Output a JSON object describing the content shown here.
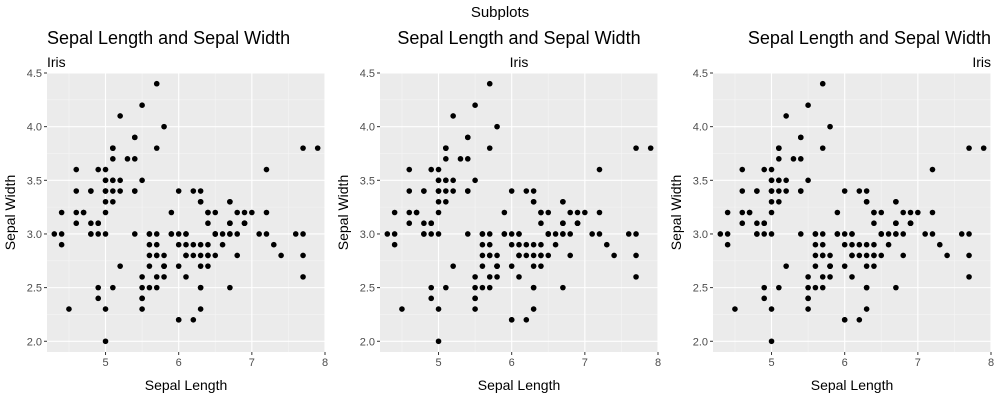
{
  "suptitle": "Subplots",
  "chart_data": [
    {
      "type": "scatter",
      "title": "Sepal Length and Sepal Width",
      "subtitle": "Iris",
      "title_align": "left",
      "xlabel": "Sepal Length",
      "ylabel": "Sepal Width",
      "xlim": [
        4.2,
        8.0
      ],
      "ylim": [
        1.9,
        4.5
      ],
      "xticks": [
        5,
        6,
        7,
        8
      ],
      "yticks": [
        2.0,
        2.5,
        3.0,
        3.5,
        4.0,
        4.5
      ],
      "ytick_labels": [
        "2.0",
        "2.5",
        "3.0",
        "3.5",
        "4.0",
        "4.5"
      ],
      "grid": true,
      "point_color": "#000000",
      "panel_color": "#EBEBEB",
      "series": [
        {
          "x": [
            5.1,
            4.9,
            4.7,
            4.6,
            5.0,
            5.4,
            4.6,
            5.0,
            4.4,
            4.9,
            5.4,
            4.8,
            4.8,
            4.3,
            5.8,
            5.7,
            5.4,
            5.1,
            5.7,
            5.1,
            5.4,
            5.1,
            4.6,
            5.1,
            4.8,
            5.0,
            5.0,
            5.2,
            5.2,
            4.7,
            4.8,
            5.4,
            5.2,
            5.5,
            4.9,
            5.0,
            5.5,
            4.9,
            4.4,
            5.1,
            5.0,
            4.5,
            4.4,
            5.0,
            5.1,
            4.8,
            5.1,
            4.6,
            5.3,
            5.0,
            7.0,
            6.4,
            6.9,
            5.5,
            6.5,
            5.7,
            6.3,
            4.9,
            6.6,
            5.2,
            5.0,
            5.9,
            6.0,
            6.1,
            5.6,
            6.7,
            5.6,
            5.8,
            6.2,
            5.6,
            5.9,
            6.1,
            6.3,
            6.1,
            6.4,
            6.6,
            6.8,
            6.7,
            6.0,
            5.7,
            5.5,
            5.5,
            5.8,
            6.0,
            5.4,
            6.0,
            6.7,
            6.3,
            5.6,
            5.5,
            5.5,
            6.1,
            5.8,
            5.0,
            5.6,
            5.7,
            5.7,
            6.2,
            5.1,
            5.7,
            6.3,
            5.8,
            7.1,
            6.3,
            6.5,
            7.6,
            4.9,
            7.3,
            6.7,
            7.2,
            6.5,
            6.4,
            6.8,
            5.7,
            5.8,
            6.4,
            6.5,
            7.7,
            7.7,
            6.0,
            6.9,
            5.6,
            7.7,
            6.3,
            6.7,
            7.2,
            6.2,
            6.1,
            6.4,
            7.2,
            7.4,
            7.9,
            6.4,
            6.3,
            6.1,
            7.7,
            6.3,
            6.4,
            6.0,
            6.9,
            6.7,
            6.9,
            5.8,
            6.8,
            6.7,
            6.7,
            6.3,
            6.5,
            6.2,
            5.9
          ],
          "y": [
            3.5,
            3.0,
            3.2,
            3.1,
            3.6,
            3.9,
            3.4,
            3.4,
            2.9,
            3.1,
            3.7,
            3.4,
            3.0,
            3.0,
            4.0,
            4.4,
            3.9,
            3.5,
            3.8,
            3.8,
            3.4,
            3.7,
            3.6,
            3.3,
            3.4,
            3.0,
            3.4,
            3.5,
            3.4,
            3.2,
            3.1,
            3.4,
            4.1,
            4.2,
            3.1,
            3.2,
            3.5,
            3.6,
            3.0,
            3.4,
            3.5,
            2.3,
            3.2,
            3.5,
            3.8,
            3.0,
            3.8,
            3.2,
            3.7,
            3.3,
            3.2,
            3.2,
            3.1,
            2.3,
            2.8,
            2.8,
            3.3,
            2.4,
            2.9,
            2.7,
            2.0,
            3.0,
            2.2,
            2.9,
            2.9,
            3.1,
            3.0,
            2.7,
            2.2,
            2.5,
            3.2,
            2.8,
            2.5,
            2.8,
            2.9,
            3.0,
            2.8,
            3.0,
            2.9,
            2.6,
            2.4,
            2.4,
            2.7,
            2.7,
            3.0,
            3.4,
            3.1,
            2.3,
            3.0,
            2.5,
            2.6,
            3.0,
            2.6,
            2.3,
            2.7,
            3.0,
            2.9,
            2.9,
            2.5,
            2.8,
            3.3,
            2.7,
            3.0,
            2.9,
            3.0,
            3.0,
            2.5,
            2.9,
            2.5,
            3.6,
            3.2,
            2.7,
            3.0,
            2.5,
            2.8,
            3.2,
            3.0,
            3.8,
            2.6,
            2.2,
            3.2,
            2.8,
            2.8,
            2.7,
            3.3,
            3.2,
            2.8,
            3.0,
            2.8,
            3.0,
            2.8,
            3.8,
            2.8,
            2.8,
            2.6,
            3.0,
            3.4,
            3.1,
            3.0,
            3.1,
            3.1,
            3.1,
            2.7,
            3.2,
            3.3,
            3.0,
            2.5,
            3.0,
            3.4,
            3.0
          ]
        }
      ]
    },
    {
      "type": "scatter",
      "title": "Sepal Length and Sepal Width",
      "subtitle": "Iris",
      "title_align": "center",
      "xlabel": "Sepal Length",
      "ylabel": "Sepal Width",
      "xlim": [
        4.2,
        8.0
      ],
      "ylim": [
        1.9,
        4.5
      ],
      "xticks": [
        5,
        6,
        7,
        8
      ],
      "yticks": [
        2.0,
        2.5,
        3.0,
        3.5,
        4.0,
        4.5
      ],
      "ytick_labels": [
        "2.0",
        "2.5",
        "3.0",
        "3.5",
        "4.0",
        "4.5"
      ],
      "grid": true,
      "point_color": "#000000",
      "panel_color": "#EBEBEB",
      "series": [
        {
          "x": [
            5.1,
            4.9,
            4.7,
            4.6,
            5.0,
            5.4,
            4.6,
            5.0,
            4.4,
            4.9,
            5.4,
            4.8,
            4.8,
            4.3,
            5.8,
            5.7,
            5.4,
            5.1,
            5.7,
            5.1,
            5.4,
            5.1,
            4.6,
            5.1,
            4.8,
            5.0,
            5.0,
            5.2,
            5.2,
            4.7,
            4.8,
            5.4,
            5.2,
            5.5,
            4.9,
            5.0,
            5.5,
            4.9,
            4.4,
            5.1,
            5.0,
            4.5,
            4.4,
            5.0,
            5.1,
            4.8,
            5.1,
            4.6,
            5.3,
            5.0,
            7.0,
            6.4,
            6.9,
            5.5,
            6.5,
            5.7,
            6.3,
            4.9,
            6.6,
            5.2,
            5.0,
            5.9,
            6.0,
            6.1,
            5.6,
            6.7,
            5.6,
            5.8,
            6.2,
            5.6,
            5.9,
            6.1,
            6.3,
            6.1,
            6.4,
            6.6,
            6.8,
            6.7,
            6.0,
            5.7,
            5.5,
            5.5,
            5.8,
            6.0,
            5.4,
            6.0,
            6.7,
            6.3,
            5.6,
            5.5,
            5.5,
            6.1,
            5.8,
            5.0,
            5.6,
            5.7,
            5.7,
            6.2,
            5.1,
            5.7,
            6.3,
            5.8,
            7.1,
            6.3,
            6.5,
            7.6,
            4.9,
            7.3,
            6.7,
            7.2,
            6.5,
            6.4,
            6.8,
            5.7,
            5.8,
            6.4,
            6.5,
            7.7,
            7.7,
            6.0,
            6.9,
            5.6,
            7.7,
            6.3,
            6.7,
            7.2,
            6.2,
            6.1,
            6.4,
            7.2,
            7.4,
            7.9,
            6.4,
            6.3,
            6.1,
            7.7,
            6.3,
            6.4,
            6.0,
            6.9,
            6.7,
            6.9,
            5.8,
            6.8,
            6.7,
            6.7,
            6.3,
            6.5,
            6.2,
            5.9
          ],
          "y": [
            3.5,
            3.0,
            3.2,
            3.1,
            3.6,
            3.9,
            3.4,
            3.4,
            2.9,
            3.1,
            3.7,
            3.4,
            3.0,
            3.0,
            4.0,
            4.4,
            3.9,
            3.5,
            3.8,
            3.8,
            3.4,
            3.7,
            3.6,
            3.3,
            3.4,
            3.0,
            3.4,
            3.5,
            3.4,
            3.2,
            3.1,
            3.4,
            4.1,
            4.2,
            3.1,
            3.2,
            3.5,
            3.6,
            3.0,
            3.4,
            3.5,
            2.3,
            3.2,
            3.5,
            3.8,
            3.0,
            3.8,
            3.2,
            3.7,
            3.3,
            3.2,
            3.2,
            3.1,
            2.3,
            2.8,
            2.8,
            3.3,
            2.4,
            2.9,
            2.7,
            2.0,
            3.0,
            2.2,
            2.9,
            2.9,
            3.1,
            3.0,
            2.7,
            2.2,
            2.5,
            3.2,
            2.8,
            2.5,
            2.8,
            2.9,
            3.0,
            2.8,
            3.0,
            2.9,
            2.6,
            2.4,
            2.4,
            2.7,
            2.7,
            3.0,
            3.4,
            3.1,
            2.3,
            3.0,
            2.5,
            2.6,
            3.0,
            2.6,
            2.3,
            2.7,
            3.0,
            2.9,
            2.9,
            2.5,
            2.8,
            3.3,
            2.7,
            3.0,
            2.9,
            3.0,
            3.0,
            2.5,
            2.9,
            2.5,
            3.6,
            3.2,
            2.7,
            3.0,
            2.5,
            2.8,
            3.2,
            3.0,
            3.8,
            2.6,
            2.2,
            3.2,
            2.8,
            2.8,
            2.7,
            3.3,
            3.2,
            2.8,
            3.0,
            2.8,
            3.0,
            2.8,
            3.8,
            2.8,
            2.8,
            2.6,
            3.0,
            3.4,
            3.1,
            3.0,
            3.1,
            3.1,
            3.1,
            2.7,
            3.2,
            3.3,
            3.0,
            2.5,
            3.0,
            3.4,
            3.0
          ]
        }
      ]
    },
    {
      "type": "scatter",
      "title": "Sepal Length and Sepal Width",
      "subtitle": "Iris",
      "title_align": "right",
      "xlabel": "Sepal Length",
      "ylabel": "Sepal Width",
      "xlim": [
        4.2,
        8.0
      ],
      "ylim": [
        1.9,
        4.5
      ],
      "xticks": [
        5,
        6,
        7,
        8
      ],
      "yticks": [
        2.0,
        2.5,
        3.0,
        3.5,
        4.0,
        4.5
      ],
      "ytick_labels": [
        "2.0",
        "2.5",
        "3.0",
        "3.5",
        "4.0",
        "4.5"
      ],
      "grid": true,
      "point_color": "#000000",
      "panel_color": "#EBEBEB",
      "series": [
        {
          "x": [
            5.1,
            4.9,
            4.7,
            4.6,
            5.0,
            5.4,
            4.6,
            5.0,
            4.4,
            4.9,
            5.4,
            4.8,
            4.8,
            4.3,
            5.8,
            5.7,
            5.4,
            5.1,
            5.7,
            5.1,
            5.4,
            5.1,
            4.6,
            5.1,
            4.8,
            5.0,
            5.0,
            5.2,
            5.2,
            4.7,
            4.8,
            5.4,
            5.2,
            5.5,
            4.9,
            5.0,
            5.5,
            4.9,
            4.4,
            5.1,
            5.0,
            4.5,
            4.4,
            5.0,
            5.1,
            4.8,
            5.1,
            4.6,
            5.3,
            5.0,
            7.0,
            6.4,
            6.9,
            5.5,
            6.5,
            5.7,
            6.3,
            4.9,
            6.6,
            5.2,
            5.0,
            5.9,
            6.0,
            6.1,
            5.6,
            6.7,
            5.6,
            5.8,
            6.2,
            5.6,
            5.9,
            6.1,
            6.3,
            6.1,
            6.4,
            6.6,
            6.8,
            6.7,
            6.0,
            5.7,
            5.5,
            5.5,
            5.8,
            6.0,
            5.4,
            6.0,
            6.7,
            6.3,
            5.6,
            5.5,
            5.5,
            6.1,
            5.8,
            5.0,
            5.6,
            5.7,
            5.7,
            6.2,
            5.1,
            5.7,
            6.3,
            5.8,
            7.1,
            6.3,
            6.5,
            7.6,
            4.9,
            7.3,
            6.7,
            7.2,
            6.5,
            6.4,
            6.8,
            5.7,
            5.8,
            6.4,
            6.5,
            7.7,
            7.7,
            6.0,
            6.9,
            5.6,
            7.7,
            6.3,
            6.7,
            7.2,
            6.2,
            6.1,
            6.4,
            7.2,
            7.4,
            7.9,
            6.4,
            6.3,
            6.1,
            7.7,
            6.3,
            6.4,
            6.0,
            6.9,
            6.7,
            6.9,
            5.8,
            6.8,
            6.7,
            6.7,
            6.3,
            6.5,
            6.2,
            5.9
          ],
          "y": [
            3.5,
            3.0,
            3.2,
            3.1,
            3.6,
            3.9,
            3.4,
            3.4,
            2.9,
            3.1,
            3.7,
            3.4,
            3.0,
            3.0,
            4.0,
            4.4,
            3.9,
            3.5,
            3.8,
            3.8,
            3.4,
            3.7,
            3.6,
            3.3,
            3.4,
            3.0,
            3.4,
            3.5,
            3.4,
            3.2,
            3.1,
            3.4,
            4.1,
            4.2,
            3.1,
            3.2,
            3.5,
            3.6,
            3.0,
            3.4,
            3.5,
            2.3,
            3.2,
            3.5,
            3.8,
            3.0,
            3.8,
            3.2,
            3.7,
            3.3,
            3.2,
            3.2,
            3.1,
            2.3,
            2.8,
            2.8,
            3.3,
            2.4,
            2.9,
            2.7,
            2.0,
            3.0,
            2.2,
            2.9,
            2.9,
            3.1,
            3.0,
            2.7,
            2.2,
            2.5,
            3.2,
            2.8,
            2.5,
            2.8,
            2.9,
            3.0,
            2.8,
            3.0,
            2.9,
            2.6,
            2.4,
            2.4,
            2.7,
            2.7,
            3.0,
            3.4,
            3.1,
            2.3,
            3.0,
            2.5,
            2.6,
            3.0,
            2.6,
            2.3,
            2.7,
            3.0,
            2.9,
            2.9,
            2.5,
            2.8,
            3.3,
            2.7,
            3.0,
            2.9,
            3.0,
            3.0,
            2.5,
            2.9,
            2.5,
            3.6,
            3.2,
            2.7,
            3.0,
            2.5,
            2.8,
            3.2,
            3.0,
            3.8,
            2.6,
            2.2,
            3.2,
            2.8,
            2.8,
            2.7,
            3.3,
            3.2,
            2.8,
            3.0,
            2.8,
            3.0,
            2.8,
            3.8,
            2.8,
            2.8,
            2.6,
            3.0,
            3.4,
            3.1,
            3.0,
            3.1,
            3.1,
            3.1,
            2.7,
            3.2,
            3.3,
            3.0,
            2.5,
            3.0,
            3.4,
            3.0
          ]
        }
      ]
    }
  ]
}
